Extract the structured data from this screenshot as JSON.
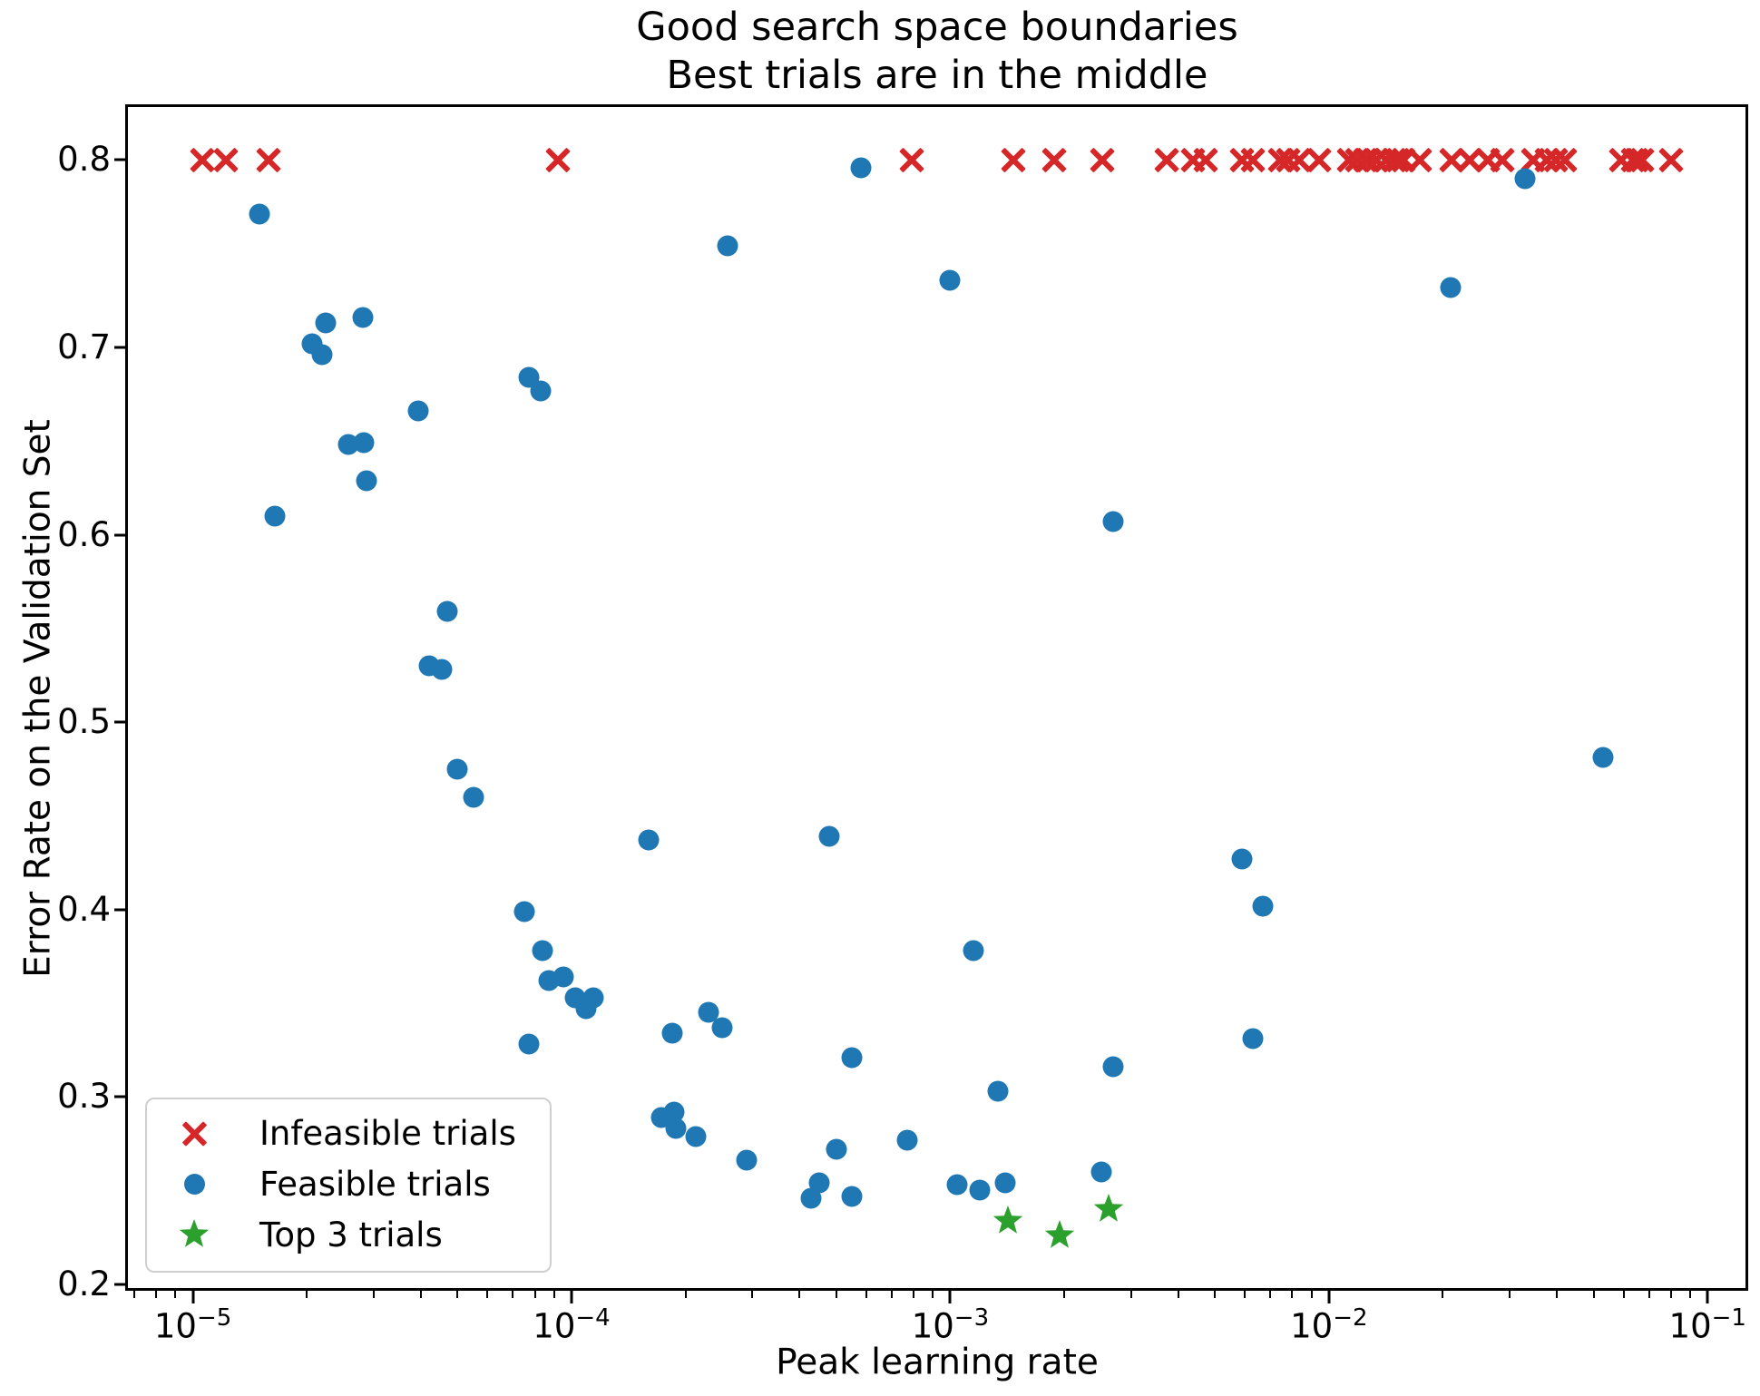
{
  "chart_data": {
    "type": "scatter",
    "title_line1": "Good search space boundaries",
    "title_line2": "Best trials are in the middle",
    "xlabel": "Peak learning rate",
    "ylabel": "Error Rate on the Validation Set",
    "x_scale": "log",
    "y_scale": "linear",
    "xlim": [
      6.7e-06,
      0.128
    ],
    "ylim": [
      0.1965,
      0.8288
    ],
    "grid": false,
    "legend_position": "lower-left",
    "x_ticks": [
      {
        "v": 1e-05,
        "base": "10",
        "exp": "−5"
      },
      {
        "v": 0.0001,
        "base": "10",
        "exp": "−4"
      },
      {
        "v": 0.001,
        "base": "10",
        "exp": "−3"
      },
      {
        "v": 0.01,
        "base": "10",
        "exp": "−2"
      },
      {
        "v": 0.1,
        "base": "10",
        "exp": "−1"
      }
    ],
    "y_ticks": [
      {
        "v": 0.2,
        "label": "0.2"
      },
      {
        "v": 0.3,
        "label": "0.3"
      },
      {
        "v": 0.4,
        "label": "0.4"
      },
      {
        "v": 0.5,
        "label": "0.5"
      },
      {
        "v": 0.6,
        "label": "0.6"
      },
      {
        "v": 0.7,
        "label": "0.7"
      },
      {
        "v": 0.8,
        "label": "0.8"
      }
    ],
    "series": [
      {
        "name": "Infeasible trials",
        "marker": "x",
        "color": "#d62728",
        "points": [
          [
            1.06e-05,
            0.8
          ],
          [
            1.22e-05,
            0.8
          ],
          [
            1.58e-05,
            0.8
          ],
          [
            9.2e-05,
            0.8
          ],
          [
            0.00079,
            0.8
          ],
          [
            0.00147,
            0.8
          ],
          [
            0.00188,
            0.8
          ],
          [
            0.00252,
            0.8
          ],
          [
            0.00372,
            0.8
          ],
          [
            0.00438,
            0.8
          ],
          [
            0.00472,
            0.8
          ],
          [
            0.00588,
            0.8
          ],
          [
            0.00628,
            0.8
          ],
          [
            0.00745,
            0.8
          ],
          [
            0.0078,
            0.8
          ],
          [
            0.00834,
            0.8
          ],
          [
            0.0094,
            0.8
          ],
          [
            0.0113,
            0.8
          ],
          [
            0.0119,
            0.8
          ],
          [
            0.01245,
            0.8
          ],
          [
            0.0127,
            0.8
          ],
          [
            0.0133,
            0.8
          ],
          [
            0.0142,
            0.8
          ],
          [
            0.0149,
            0.8
          ],
          [
            0.0152,
            0.8
          ],
          [
            0.0157,
            0.8
          ],
          [
            0.0174,
            0.8
          ],
          [
            0.0211,
            0.8
          ],
          [
            0.0236,
            0.8
          ],
          [
            0.0263,
            0.8
          ],
          [
            0.0287,
            0.8
          ],
          [
            0.0347,
            0.8
          ],
          [
            0.0377,
            0.8
          ],
          [
            0.0398,
            0.8
          ],
          [
            0.042,
            0.8
          ],
          [
            0.059,
            0.8
          ],
          [
            0.0635,
            0.8
          ],
          [
            0.065,
            0.8
          ],
          [
            0.067,
            0.8
          ],
          [
            0.08,
            0.8
          ]
        ]
      },
      {
        "name": "Feasible trials",
        "marker": "circle",
        "color": "#1f77b4",
        "points": [
          [
            1.5e-05,
            0.771
          ],
          [
            1.65e-05,
            0.61
          ],
          [
            2.06e-05,
            0.702
          ],
          [
            2.19e-05,
            0.696
          ],
          [
            2.24e-05,
            0.713
          ],
          [
            2.81e-05,
            0.716
          ],
          [
            2.57e-05,
            0.648
          ],
          [
            2.82e-05,
            0.649
          ],
          [
            2.87e-05,
            0.629
          ],
          [
            3.93e-05,
            0.666
          ],
          [
            4.2e-05,
            0.53
          ],
          [
            4.55e-05,
            0.528
          ],
          [
            4.7e-05,
            0.559
          ],
          [
            5e-05,
            0.475
          ],
          [
            5.5e-05,
            0.46
          ],
          [
            7.5e-05,
            0.399
          ],
          [
            7.7e-05,
            0.684
          ],
          [
            8.3e-05,
            0.677
          ],
          [
            7.7e-05,
            0.328
          ],
          [
            8.4e-05,
            0.378
          ],
          [
            8.7e-05,
            0.362
          ],
          [
            9.5e-05,
            0.364
          ],
          [
            0.000102,
            0.353
          ],
          [
            0.000109,
            0.347
          ],
          [
            0.000114,
            0.353
          ],
          [
            0.00016,
            0.437
          ],
          [
            0.000173,
            0.289
          ],
          [
            0.000184,
            0.334
          ],
          [
            0.000187,
            0.292
          ],
          [
            0.000189,
            0.283
          ],
          [
            0.000213,
            0.279
          ],
          [
            0.00023,
            0.345
          ],
          [
            0.00025,
            0.337
          ],
          [
            0.000258,
            0.754
          ],
          [
            0.00029,
            0.266
          ],
          [
            0.00043,
            0.246
          ],
          [
            0.00045,
            0.254
          ],
          [
            0.00048,
            0.439
          ],
          [
            0.0005,
            0.272
          ],
          [
            0.00055,
            0.321
          ],
          [
            0.00055,
            0.247
          ],
          [
            0.00058,
            0.796
          ],
          [
            0.00077,
            0.277
          ],
          [
            0.001,
            0.736
          ],
          [
            0.00104,
            0.253
          ],
          [
            0.00115,
            0.378
          ],
          [
            0.0012,
            0.25
          ],
          [
            0.00134,
            0.303
          ],
          [
            0.0014,
            0.254
          ],
          [
            0.0025,
            0.26
          ],
          [
            0.0027,
            0.316
          ],
          [
            0.0027,
            0.607
          ],
          [
            0.0059,
            0.427
          ],
          [
            0.0063,
            0.331
          ],
          [
            0.0067,
            0.402
          ],
          [
            0.021,
            0.732
          ],
          [
            0.033,
            0.79
          ],
          [
            0.053,
            0.481
          ]
        ]
      },
      {
        "name": "Top 3 trials",
        "marker": "star",
        "color": "#2ca02c",
        "points": [
          [
            0.00142,
            0.234
          ],
          [
            0.00194,
            0.226
          ],
          [
            0.00262,
            0.24
          ]
        ]
      }
    ]
  }
}
